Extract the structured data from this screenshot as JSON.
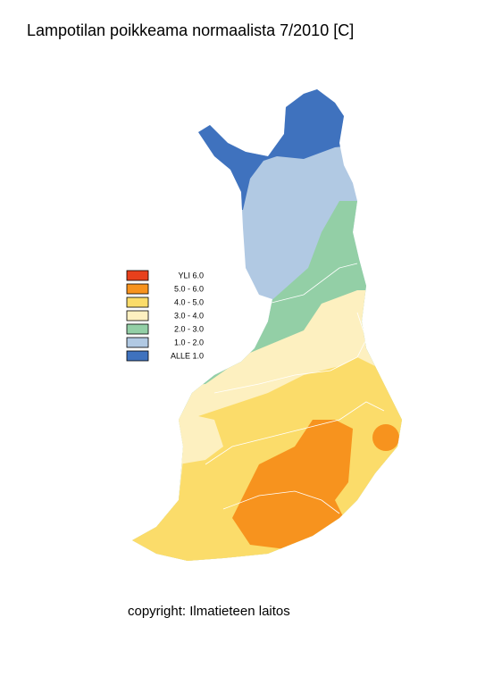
{
  "title": "Lampotilan poikkeama normaalista 7/2010 [C]",
  "legend": [
    {
      "label": "YLI 6.0",
      "color": "#e8401c"
    },
    {
      "label": "5.0 - 6.0",
      "color": "#f7931e"
    },
    {
      "label": "4.0 - 5.0",
      "color": "#fbdc6a"
    },
    {
      "label": "3.0 - 4.0",
      "color": "#fdf0c0"
    },
    {
      "label": "2.0 - 3.0",
      "color": "#93cfa6"
    },
    {
      "label": "1.0 - 2.0",
      "color": "#b1c9e3"
    },
    {
      "label": "ALLE 1.0",
      "color": "#3f72be"
    }
  ],
  "copyright": "copyright: Ilmatieteen laitos"
}
